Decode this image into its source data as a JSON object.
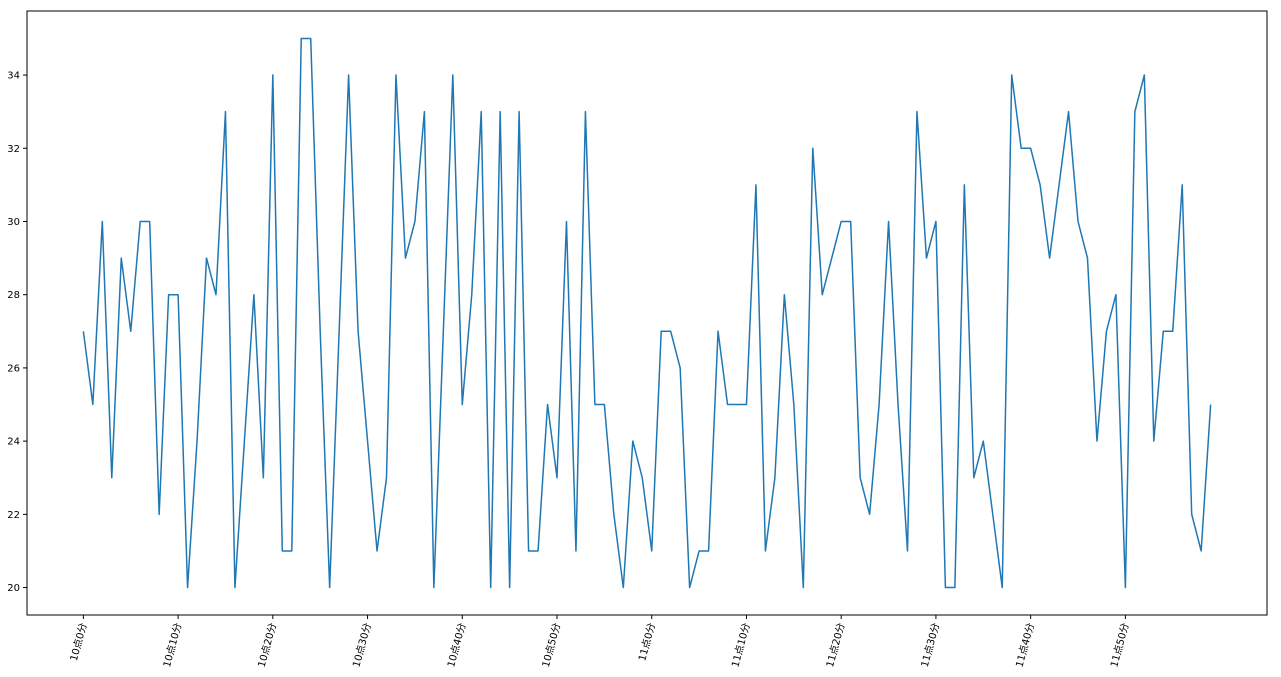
{
  "chart_data": {
    "type": "line",
    "x": [
      0,
      1,
      2,
      3,
      4,
      5,
      6,
      7,
      8,
      9,
      10,
      11,
      12,
      13,
      14,
      15,
      16,
      17,
      18,
      19,
      20,
      21,
      22,
      23,
      24,
      25,
      26,
      27,
      28,
      29,
      30,
      31,
      32,
      33,
      34,
      35,
      36,
      37,
      38,
      39,
      40,
      41,
      42,
      43,
      44,
      45,
      46,
      47,
      48,
      49,
      50,
      51,
      52,
      53,
      54,
      55,
      56,
      57,
      58,
      59,
      60,
      61,
      62,
      63,
      64,
      65,
      66,
      67,
      68,
      69,
      70,
      71,
      72,
      73,
      74,
      75,
      76,
      77,
      78,
      79,
      80,
      81,
      82,
      83,
      84,
      85,
      86,
      87,
      88,
      89,
      90,
      91,
      92,
      93,
      94,
      95,
      96,
      97,
      98,
      99,
      100,
      101,
      102,
      103,
      104,
      105,
      106,
      107,
      108,
      109,
      110,
      111,
      112,
      113,
      114,
      115,
      116,
      117,
      118,
      119
    ],
    "values": [
      27,
      25,
      30,
      23,
      29,
      27,
      30,
      30,
      22,
      28,
      28,
      20,
      24,
      29,
      28,
      33,
      20,
      24,
      28,
      23,
      34,
      21,
      21,
      35,
      35,
      27,
      20,
      27,
      34,
      27,
      24,
      21,
      23,
      34,
      29,
      30,
      33,
      20,
      27,
      34,
      25,
      28,
      33,
      20,
      33,
      20,
      33,
      21,
      21,
      25,
      23,
      30,
      21,
      33,
      25,
      25,
      22,
      20,
      24,
      23,
      21,
      27,
      27,
      26,
      20,
      21,
      21,
      27,
      25,
      25,
      25,
      31,
      21,
      23,
      28,
      25,
      20,
      32,
      28,
      29,
      30,
      30,
      23,
      22,
      25,
      30,
      25,
      21,
      33,
      29,
      30,
      20,
      20,
      31,
      23,
      24,
      22,
      20,
      34,
      32,
      32,
      31,
      29,
      31,
      33,
      30,
      29,
      24,
      27,
      28,
      20,
      33,
      34,
      24,
      27,
      27,
      31,
      22,
      21,
      25
    ],
    "color": "#1f77b4",
    "xlim": [
      -5.95,
      124.95
    ],
    "xticks": [
      {
        "value": 0,
        "label": "10点0分"
      },
      {
        "value": 10,
        "label": "10点10分"
      },
      {
        "value": 20,
        "label": "10点20分"
      },
      {
        "value": 30,
        "label": "10点30分"
      },
      {
        "value": 40,
        "label": "10点40分"
      },
      {
        "value": 50,
        "label": "10点50分"
      },
      {
        "value": 60,
        "label": "11点0分"
      },
      {
        "value": 70,
        "label": "11点10分"
      },
      {
        "value": 80,
        "label": "11点20分"
      },
      {
        "value": 90,
        "label": "11点30分"
      },
      {
        "value": 100,
        "label": "11点40分"
      },
      {
        "value": 110,
        "label": "11点50分"
      }
    ],
    "ylim": [
      19.25,
      35.75
    ],
    "yticks": [
      20,
      22,
      24,
      26,
      28,
      30,
      32,
      34
    ]
  }
}
